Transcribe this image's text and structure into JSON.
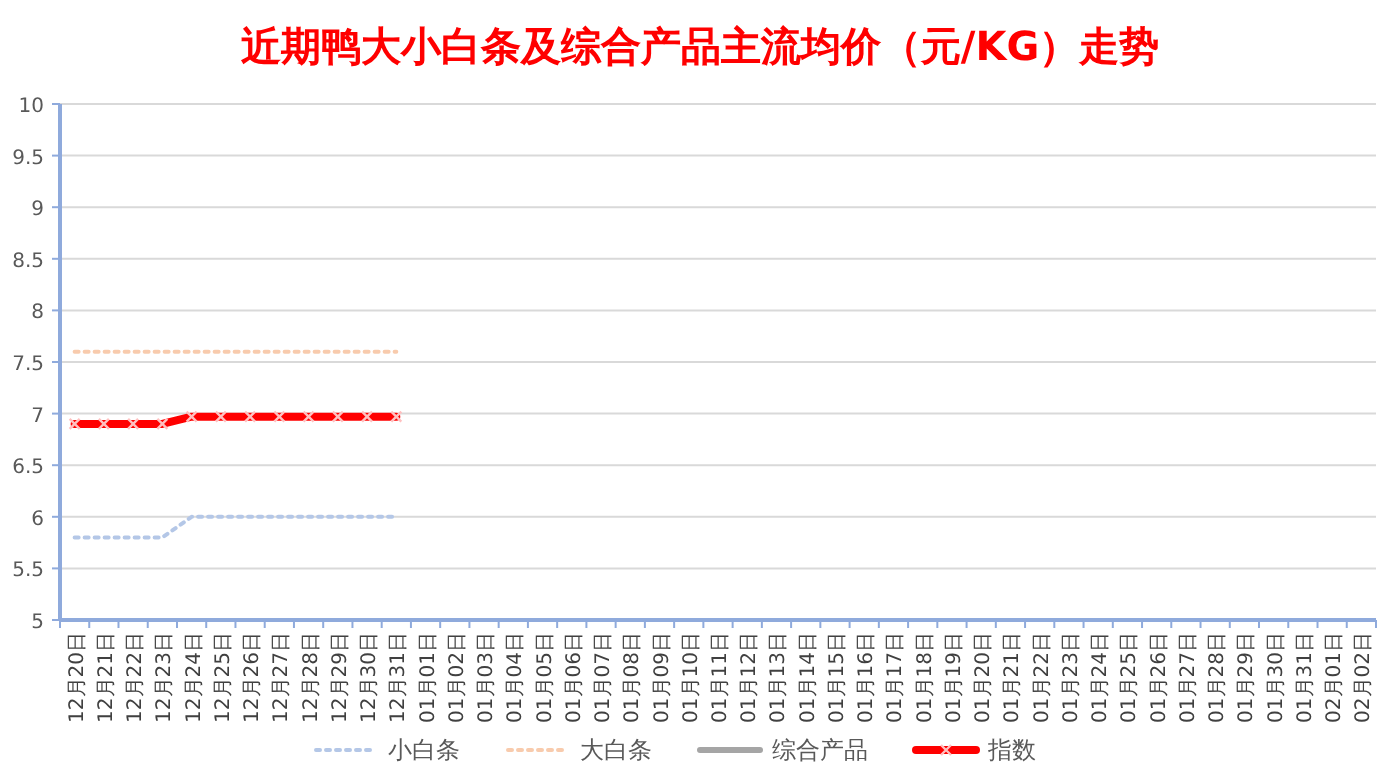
{
  "chart_data": {
    "type": "line",
    "title": "近期鸭大小白条及综合产品主流均价（元/KG）走势",
    "categories": [
      "12月20日",
      "12月21日",
      "12月22日",
      "12月23日",
      "12月24日",
      "12月25日",
      "12月26日",
      "12月27日",
      "12月28日",
      "12月29日",
      "12月30日",
      "12月31日",
      "01月01日",
      "01月02日",
      "01月03日",
      "01月04日",
      "01月05日",
      "01月06日",
      "01月07日",
      "01月08日",
      "01月09日",
      "01月10日",
      "01月11日",
      "01月12日",
      "01月13日",
      "01月14日",
      "01月15日",
      "01月16日",
      "01月17日",
      "01月18日",
      "01月19日",
      "01月20日",
      "01月21日",
      "01月22日",
      "01月23日",
      "01月24日",
      "01月25日",
      "01月26日",
      "01月27日",
      "01月28日",
      "01月29日",
      "01月30日",
      "01月31日",
      "02月01日",
      "02月02日"
    ],
    "series": [
      {
        "name": "小白条",
        "color": "#b4c7e7",
        "line_style": "dotted",
        "marker": "none",
        "values": [
          5.8,
          5.8,
          5.8,
          5.8,
          6,
          6,
          6,
          6,
          6,
          6,
          6,
          6,
          null,
          null,
          null,
          null,
          null,
          null,
          null,
          null,
          null,
          null,
          null,
          null,
          null,
          null,
          null,
          null,
          null,
          null,
          null,
          null,
          null,
          null,
          null,
          null,
          null,
          null,
          null,
          null,
          null,
          null,
          null,
          null,
          null
        ]
      },
      {
        "name": "大白条",
        "color": "#f8cbad",
        "line_style": "dotted",
        "marker": "none",
        "values": [
          7.6,
          7.6,
          7.6,
          7.6,
          7.6,
          7.6,
          7.6,
          7.6,
          7.6,
          7.6,
          7.6,
          7.6,
          null,
          null,
          null,
          null,
          null,
          null,
          null,
          null,
          null,
          null,
          null,
          null,
          null,
          null,
          null,
          null,
          null,
          null,
          null,
          null,
          null,
          null,
          null,
          null,
          null,
          null,
          null,
          null,
          null,
          null,
          null,
          null,
          null
        ]
      },
      {
        "name": "综合产品",
        "color": "#a5a5a5",
        "line_style": "solid",
        "marker": "none",
        "values": [
          null,
          null,
          null,
          null,
          null,
          null,
          null,
          null,
          null,
          null,
          null,
          null,
          null,
          null,
          null,
          null,
          null,
          null,
          null,
          null,
          null,
          null,
          null,
          null,
          null,
          null,
          null,
          null,
          null,
          null,
          null,
          null,
          null,
          null,
          null,
          null,
          null,
          null,
          null,
          null,
          null,
          null,
          null,
          null,
          null
        ]
      },
      {
        "name": "指数",
        "color": "#ff0000",
        "line_style": "solid",
        "marker": "cross",
        "values": [
          6.9,
          6.9,
          6.9,
          6.9,
          6.97,
          6.97,
          6.97,
          6.97,
          6.97,
          6.97,
          6.97,
          6.97,
          null,
          null,
          null,
          null,
          null,
          null,
          null,
          null,
          null,
          null,
          null,
          null,
          null,
          null,
          null,
          null,
          null,
          null,
          null,
          null,
          null,
          null,
          null,
          null,
          null,
          null,
          null,
          null,
          null,
          null,
          null,
          null,
          null
        ]
      }
    ],
    "ylim": [
      5,
      10
    ],
    "yticks": [
      5,
      5.5,
      6,
      6.5,
      7,
      7.5,
      8,
      8.5,
      9,
      9.5,
      10
    ],
    "grid": "y",
    "legend": "bottom"
  }
}
